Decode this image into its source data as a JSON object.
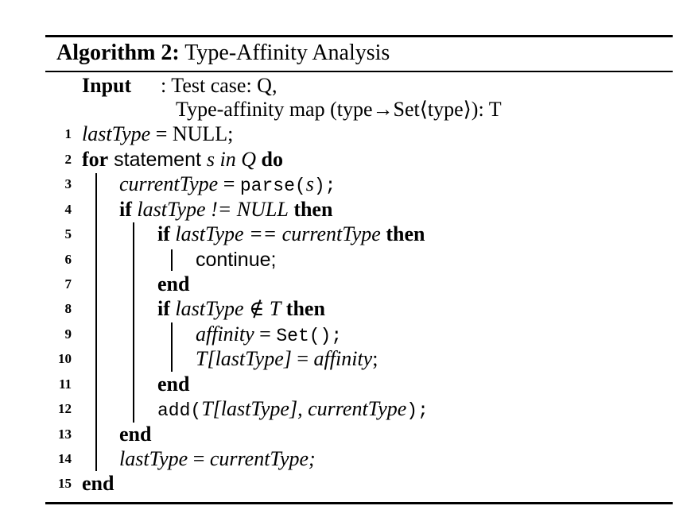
{
  "algorithm": {
    "label": "Algorithm 2:",
    "title": "Type-Affinity Analysis",
    "input_keyword": "Input",
    "input_line1": ": Test case: Q,",
    "input_line2": "Type-affinity map (type→Set⟨type⟩): T",
    "lines": [
      {
        "no": "1"
      },
      {
        "no": "2"
      },
      {
        "no": "3"
      },
      {
        "no": "4"
      },
      {
        "no": "5"
      },
      {
        "no": "6"
      },
      {
        "no": "7"
      },
      {
        "no": "8"
      },
      {
        "no": "9"
      },
      {
        "no": "10"
      },
      {
        "no": "11"
      },
      {
        "no": "12"
      },
      {
        "no": "13"
      },
      {
        "no": "14"
      },
      {
        "no": "15"
      }
    ],
    "code": {
      "l1_var": "lastType",
      "l1_rest": " = NULL;",
      "l2_for": "for",
      "l2_statement": " statement ",
      "l2_cond": "s in Q",
      "l2_do": " do",
      "l3_var": "currentType",
      "l3_eq": " = ",
      "l3_call": "parse(",
      "l3_arg": "s",
      "l3_close": ");",
      "l4_if": "if",
      "l4_cond": " lastType != NULL",
      "l4_then": " then",
      "l5_if": "if",
      "l5_cond": " lastType == currentType",
      "l5_then": " then",
      "l6_text": "continue;",
      "l7_end": "end",
      "l8_if": "if",
      "l8_cond": " lastType ∉ T",
      "l8_then": " then",
      "l9_var": "affinity",
      "l9_eq": " = ",
      "l9_call": "Set();",
      "l10_lhs": "T[lastType]",
      "l10_eq": " = ",
      "l10_rhs": "affinity",
      "l10_semi": ";",
      "l11_end": "end",
      "l12_call": "add(",
      "l12_args": "T[lastType], currentType",
      "l12_close": ");",
      "l13_end": "end",
      "l14_lhs": "lastType",
      "l14_eq": " = ",
      "l14_rhs": "currentType;",
      "l15_end": "end"
    }
  }
}
